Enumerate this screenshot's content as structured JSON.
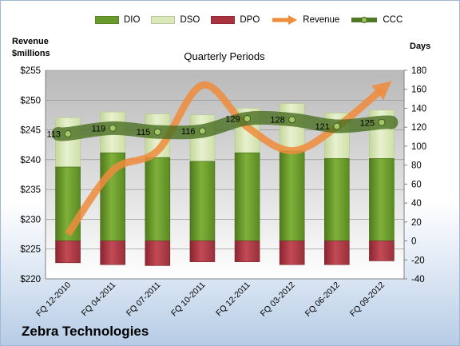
{
  "chart_data": {
    "type": "bar",
    "title": "Quarterly Periods",
    "company": "Zebra Technologies",
    "left_axis_label": "Revenue\n$millions",
    "right_axis_label": "Days",
    "categories": [
      "FQ 12-2010",
      "FQ 04-2011",
      "FQ 07-2011",
      "FQ 10-2011",
      "FQ 12-2011",
      "FQ 03-2012",
      "FQ 06-2012",
      "FQ 09-2012"
    ],
    "left_axis": {
      "min": 220,
      "max": 255,
      "step": 5,
      "tick_labels": [
        "$220",
        "$225",
        "$230",
        "$235",
        "$240",
        "$245",
        "$250",
        "$255"
      ]
    },
    "right_axis": {
      "min": -40,
      "max": 180,
      "step": 20,
      "tick_labels": [
        "-40",
        "-20",
        "0",
        "20",
        "40",
        "60",
        "80",
        "100",
        "120",
        "140",
        "160",
        "180"
      ]
    },
    "series": [
      {
        "name": "DIO",
        "type": "stacked-bar",
        "axis": "right",
        "color": "#6a9a2c",
        "values": [
          78,
          93,
          88,
          84,
          93,
          95,
          87,
          87
        ]
      },
      {
        "name": "DSO",
        "type": "stacked-bar",
        "axis": "right",
        "color": "#dbe8b9",
        "values": [
          52,
          43,
          46,
          49,
          47,
          50,
          48,
          51
        ]
      },
      {
        "name": "DPO",
        "type": "stacked-bar",
        "axis": "right",
        "color": "#a8323e",
        "values": [
          -23,
          -25,
          -26,
          -22,
          -22,
          -25,
          -25,
          -21
        ]
      },
      {
        "name": "Revenue",
        "type": "line",
        "axis": "left",
        "color": "#ee8c3c",
        "values": [
          227.5,
          238.2,
          241.5,
          252.5,
          245.5,
          241.5,
          245.5,
          251.8
        ]
      },
      {
        "name": "CCC",
        "type": "line",
        "axis": "right",
        "color": "#4f7a23",
        "values": [
          113,
          119,
          115,
          116,
          129,
          128,
          121,
          125
        ],
        "labels": [
          "113",
          "119",
          "115",
          "116",
          "129",
          "128",
          "121",
          "125"
        ]
      }
    ],
    "legend": {
      "position": "top",
      "entries": [
        "DIO",
        "DSO",
        "DPO",
        "Revenue",
        "CCC"
      ]
    },
    "grid": true
  }
}
